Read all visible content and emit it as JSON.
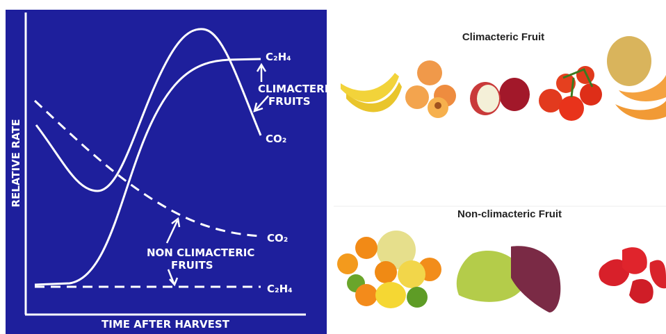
{
  "diagram": {
    "y_axis_label": "RELATIVE RATE",
    "x_axis_label": "TIME AFTER HARVEST",
    "climacteric": {
      "label_lines": [
        "CLIMACTERIC",
        "FRUITS"
      ],
      "ethylene_label": "C₂H₄",
      "co2_label": "CO₂"
    },
    "non_climacteric": {
      "label_lines": [
        "NON CLIMACTERIC",
        "FRUITS"
      ],
      "ethylene_label": "C₂H₄",
      "co2_label": "CO₂"
    }
  },
  "panels": [
    {
      "title": "Climacteric Fruit"
    },
    {
      "title": "Non-climacteric Fruit"
    }
  ]
}
